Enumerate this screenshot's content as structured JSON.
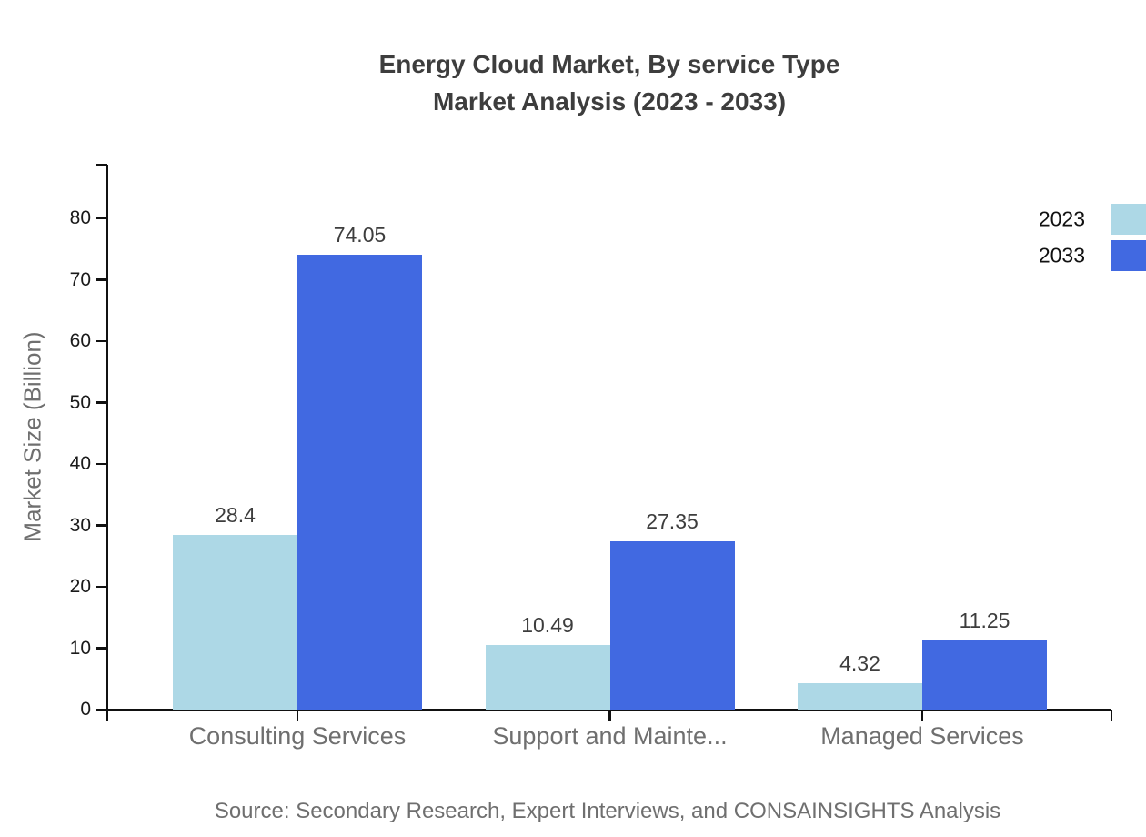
{
  "chart_data": {
    "type": "bar",
    "title_line1": "Energy Cloud Market, By service Type",
    "title_line2": "Market Analysis (2023 - 2033)",
    "categories": [
      "Consulting Services",
      "Support and Mainte...",
      "Managed Services"
    ],
    "series": [
      {
        "name": "2023",
        "color": "#ADD8E6",
        "values": [
          28.4,
          10.49,
          4.32
        ],
        "labels": [
          "28.4",
          "10.49",
          "4.32"
        ]
      },
      {
        "name": "2033",
        "color": "#4169E1",
        "values": [
          74.05,
          27.35,
          11.25
        ],
        "labels": [
          "74.05",
          "27.35",
          "11.25"
        ]
      }
    ],
    "xlabel": "",
    "ylabel": "Market Size (Billion)",
    "ylim": [
      0,
      80
    ],
    "yticks": [
      0,
      10,
      20,
      30,
      40,
      50,
      60,
      70,
      80
    ],
    "grid": false,
    "legend_position": "top-right",
    "axis_color": "#111111",
    "source": "Source: Secondary Research, Expert Interviews, and CONSAINSIGHTS Analysis"
  }
}
